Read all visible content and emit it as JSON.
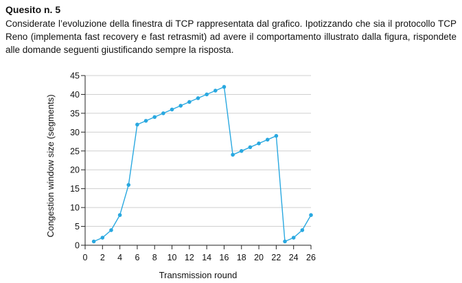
{
  "question": {
    "title": "Quesito n. 5",
    "body": "Considerate l’evoluzione della finestra di TCP rappresentata dal grafico. Ipotizzando che sia il protocollo TCP Reno (implementa fast recovery e fast retrasmit) ad avere il comportamento illustrato dalla figura, rispondete alle domande seguenti giustificando sempre la risposta."
  },
  "chart_data": {
    "type": "line",
    "xlabel": "Transmission round",
    "ylabel": "Congestion window size (segments)",
    "xlim": [
      0,
      26
    ],
    "ylim": [
      0,
      45
    ],
    "xticks": [
      0,
      2,
      4,
      6,
      8,
      10,
      12,
      14,
      16,
      18,
      20,
      22,
      24,
      26
    ],
    "yticks": [
      0,
      5,
      10,
      15,
      20,
      25,
      30,
      35,
      40,
      45
    ],
    "grid": "horizontal",
    "line_color": "#29a8e0",
    "series": [
      {
        "x": [
          1,
          2,
          3,
          4,
          5,
          6,
          7,
          8,
          9,
          10,
          11,
          12,
          13,
          14,
          15,
          16,
          17,
          18,
          19,
          20,
          21,
          22,
          23,
          24,
          25,
          26
        ],
        "y": [
          1,
          2,
          4,
          8,
          16,
          32,
          33,
          34,
          35,
          36,
          37,
          38,
          39,
          40,
          41,
          42,
          24,
          25,
          26,
          27,
          28,
          29,
          1,
          2,
          4,
          8
        ]
      }
    ]
  }
}
